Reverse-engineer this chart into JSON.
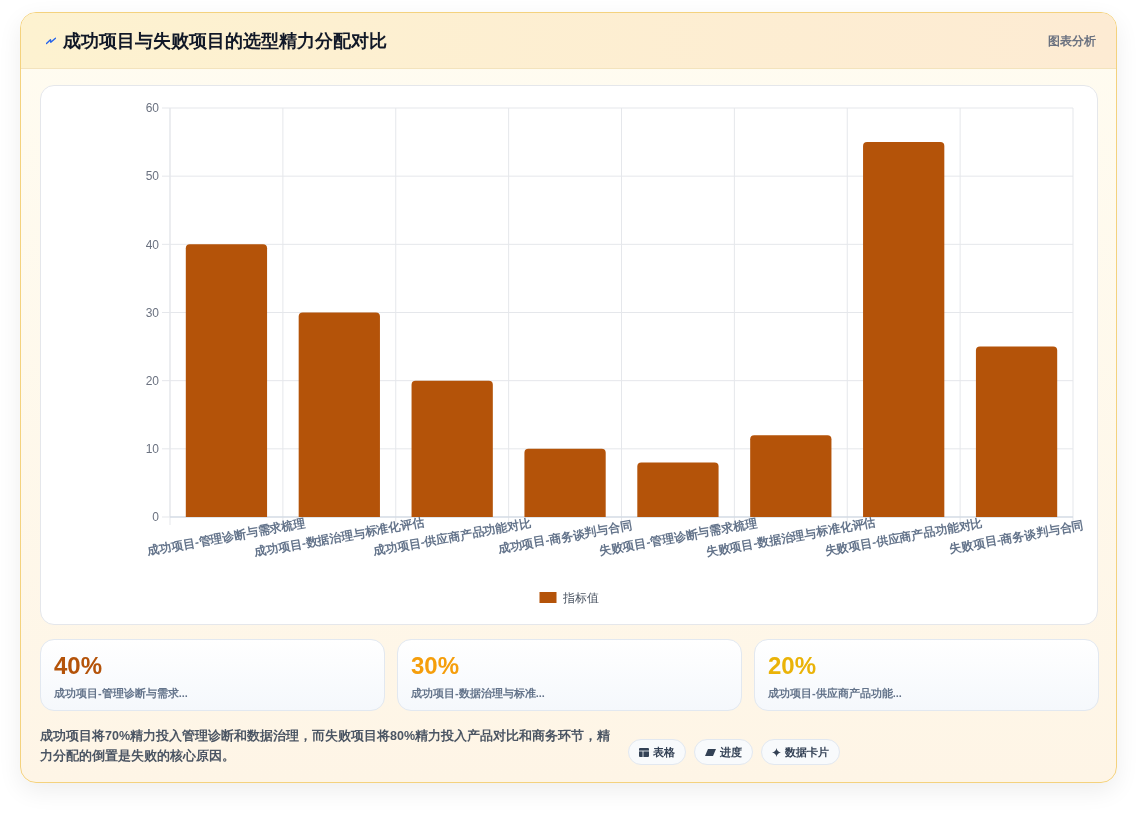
{
  "chart_data": [
    {
      "type": "bar",
      "title": "成功项目与失败项目的选型精力分配对比",
      "annotations": [
        "图表分析"
      ],
      "categories": [
        "成功项目-管理诊断与需求梳理",
        "成功项目-数据治理与标准化评估",
        "成功项目-供应商产品功能对比",
        "成功项目-商务谈判与合同",
        "失败项目-管理诊断与需求梳理",
        "失败项目-数据治理与标准化评估",
        "失败项目-供应商产品功能对比",
        "失败项目-商务谈判与合同"
      ],
      "series": [
        {
          "name": "指标值",
          "color": "#b45309",
          "values": [
            40,
            30,
            20,
            10,
            8,
            12,
            55,
            25
          ]
        }
      ],
      "ylim": [
        0,
        60
      ],
      "yticks": [
        0,
        10,
        20,
        30,
        40,
        50,
        60
      ],
      "grid": true,
      "legend": "bottom"
    },
    {
      "type": "other",
      "annotations": [
        "40%",
        "成功项目-管理诊断与需求...",
        "30%",
        "成功项目-数据治理与标准...",
        "20%",
        "成功项目-供应商产品功能..."
      ]
    },
    {
      "type": "other",
      "annotations": [
        "成功项目将70%精力投入管理诊断和数据治理，而失败项目将80%精力投入产品对比和商务环节，精力分配的倒置是失败的核心原因。",
        "表格",
        "进度",
        "数据卡片"
      ]
    }
  ]
}
